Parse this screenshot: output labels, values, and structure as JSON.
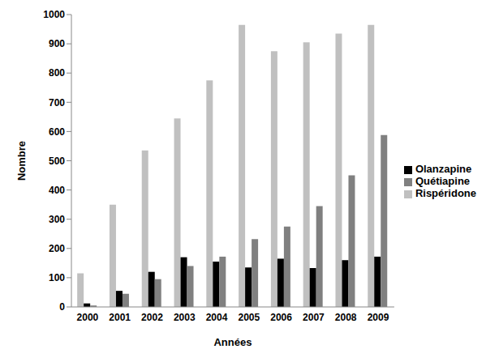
{
  "chart_data": {
    "type": "bar",
    "x_label": "Années",
    "y_label": "Nombre",
    "categories": [
      "2000",
      "2001",
      "2002",
      "2003",
      "2004",
      "2005",
      "2006",
      "2007",
      "2008",
      "2009"
    ],
    "series": [
      {
        "name": "Rispéridone",
        "color": "#c0c0c0",
        "values": [
          115,
          350,
          535,
          645,
          775,
          965,
          875,
          905,
          935,
          965
        ]
      },
      {
        "name": "Olanzapine",
        "color": "#000000",
        "values": [
          12,
          55,
          120,
          170,
          155,
          135,
          165,
          133,
          160,
          172
        ]
      },
      {
        "name": "Quétiapine",
        "color": "#808080",
        "values": [
          5,
          45,
          95,
          140,
          172,
          232,
          275,
          345,
          450,
          588
        ]
      }
    ],
    "ylim": [
      0,
      1000
    ],
    "yticks": [
      0,
      100,
      200,
      300,
      400,
      500,
      600,
      700,
      800,
      900,
      1000
    ],
    "grid": false,
    "legend": "right"
  }
}
